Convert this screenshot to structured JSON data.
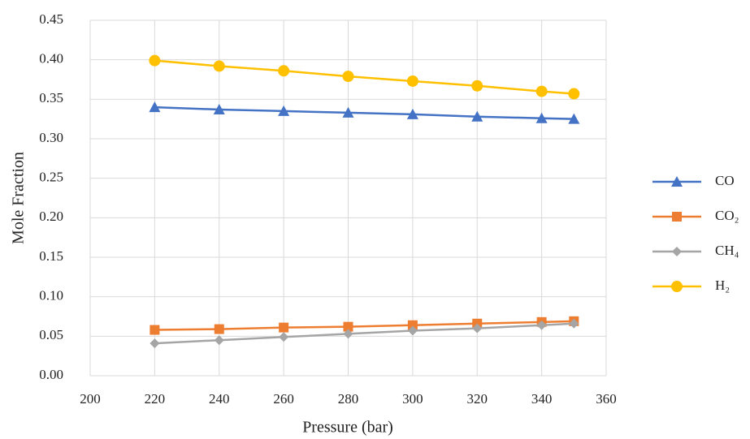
{
  "chart_data": {
    "type": "line",
    "x_label": "Pressure (bar)",
    "y_label": "Mole Fraction",
    "x": [
      220,
      240,
      260,
      280,
      300,
      320,
      340,
      350
    ],
    "series": [
      {
        "name": "CO",
        "color": "#4472c4",
        "marker": "triangle",
        "values": [
          0.34,
          0.337,
          0.335,
          0.333,
          0.331,
          0.328,
          0.326,
          0.325
        ]
      },
      {
        "name": "CO₂",
        "color": "#ed7d31",
        "marker": "square",
        "values": [
          0.058,
          0.059,
          0.061,
          0.062,
          0.064,
          0.066,
          0.068,
          0.069
        ]
      },
      {
        "name": "CH₄",
        "color": "#a5a5a5",
        "marker": "diamond",
        "values": [
          0.041,
          0.045,
          0.049,
          0.053,
          0.057,
          0.06,
          0.064,
          0.066
        ]
      },
      {
        "name": "H₂",
        "color": "#ffc000",
        "marker": "circle",
        "values": [
          0.399,
          0.392,
          0.386,
          0.379,
          0.373,
          0.367,
          0.36,
          0.357
        ]
      }
    ],
    "xlim": [
      200,
      360
    ],
    "xticks": [
      200,
      220,
      240,
      260,
      280,
      300,
      320,
      340,
      360
    ],
    "ylim": [
      0,
      0.45
    ],
    "yticks": [
      {
        "value": 0,
        "label": "0.00"
      },
      0.05,
      {
        "value": 0.1,
        "label": "0.10"
      },
      0.15,
      {
        "value": 0.2,
        "label": "0.20"
      },
      0.25,
      {
        "value": 0.3,
        "label": "0.30"
      },
      0.35,
      {
        "value": 0.4,
        "label": "0.40"
      },
      0.45
    ],
    "grid": true,
    "legend": "right"
  }
}
